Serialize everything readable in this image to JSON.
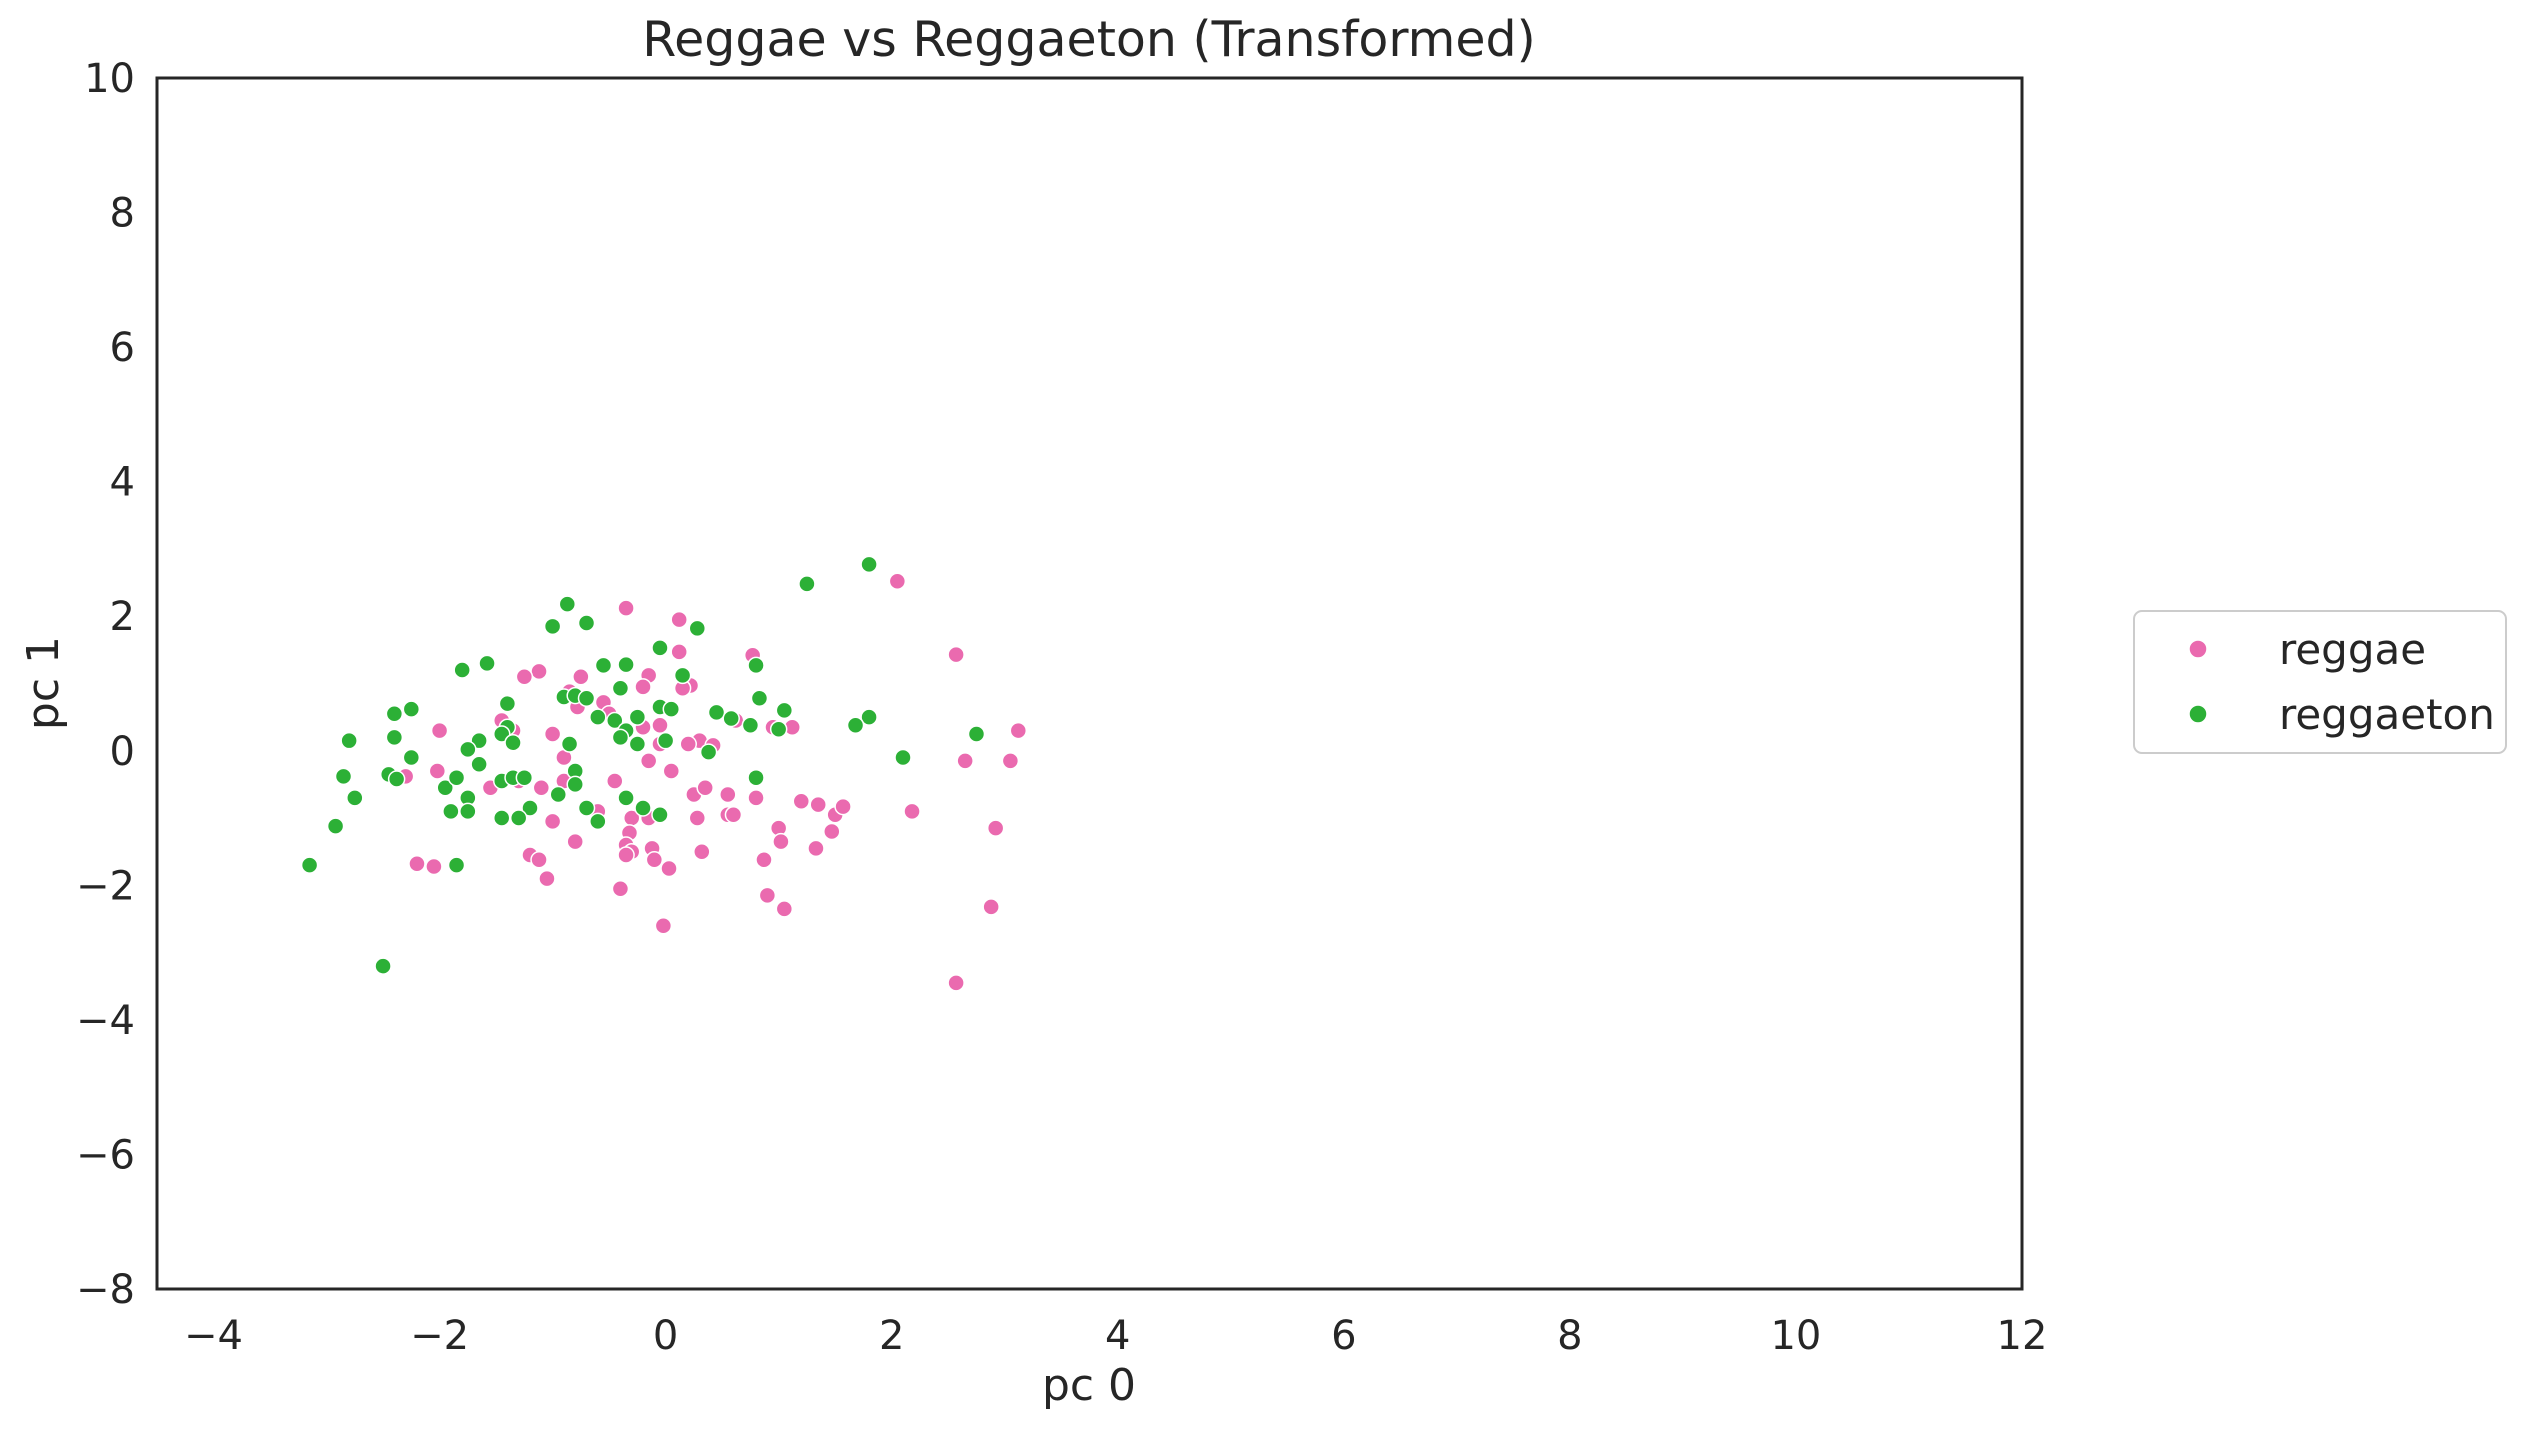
{
  "chart_data": {
    "type": "scatter",
    "title": "Reggae vs Reggaeton (Transformed)",
    "xlabel": "pc 0",
    "ylabel": "pc 1",
    "xlim": [
      -4.5,
      12
    ],
    "ylim": [
      -8,
      10
    ],
    "xticks": [
      "−4",
      "−2",
      "0",
      "2",
      "4",
      "6",
      "8",
      "10",
      "12"
    ],
    "xtick_values": [
      -4,
      -2,
      0,
      2,
      4,
      6,
      8,
      10,
      12
    ],
    "yticks": [
      "−8",
      "−6",
      "−4",
      "−2",
      "0",
      "2",
      "4",
      "6",
      "8",
      "10"
    ],
    "ytick_values": [
      -8,
      -6,
      -4,
      -2,
      0,
      2,
      4,
      6,
      8,
      10
    ],
    "grid": false,
    "legend_position": "outside-right",
    "series": [
      {
        "name": "reggae",
        "color": "#ea6aaf",
        "points": [
          [
            -0.35,
            2.12
          ],
          [
            0.12,
            1.95
          ],
          [
            2.05,
            2.52
          ],
          [
            2.57,
            1.43
          ],
          [
            0.77,
            1.42
          ],
          [
            0.12,
            1.47
          ],
          [
            -1.12,
            1.18
          ],
          [
            -0.75,
            1.1
          ],
          [
            -0.15,
            1.12
          ],
          [
            -1.25,
            1.1
          ],
          [
            -0.2,
            0.95
          ],
          [
            0.22,
            0.97
          ],
          [
            0.15,
            0.93
          ],
          [
            -0.85,
            0.88
          ],
          [
            -0.55,
            0.72
          ],
          [
            -0.78,
            0.65
          ],
          [
            -0.5,
            0.55
          ],
          [
            -0.2,
            0.35
          ],
          [
            -0.05,
            0.38
          ],
          [
            0.3,
            0.15
          ],
          [
            0.42,
            0.08
          ],
          [
            -1.45,
            0.45
          ],
          [
            -1.35,
            0.3
          ],
          [
            -1.0,
            0.25
          ],
          [
            -0.9,
            -0.1
          ],
          [
            -0.15,
            -0.15
          ],
          [
            0.05,
            -0.3
          ],
          [
            -0.45,
            -0.45
          ],
          [
            -2.0,
            0.3
          ],
          [
            -2.3,
            -0.38
          ],
          [
            -2.02,
            -0.3
          ],
          [
            -1.55,
            -0.55
          ],
          [
            -1.3,
            -0.45
          ],
          [
            -1.1,
            -0.55
          ],
          [
            -0.9,
            -0.45
          ],
          [
            -0.6,
            -0.9
          ],
          [
            -0.3,
            -1.0
          ],
          [
            -0.15,
            -1.0
          ],
          [
            0.25,
            -0.65
          ],
          [
            0.35,
            -0.55
          ],
          [
            0.55,
            -0.65
          ],
          [
            0.8,
            -0.7
          ],
          [
            0.55,
            -0.95
          ],
          [
            0.6,
            -0.95
          ],
          [
            0.28,
            -1.0
          ],
          [
            1.2,
            -0.75
          ],
          [
            1.35,
            -0.8
          ],
          [
            1.5,
            -0.95
          ],
          [
            1.57,
            -0.83
          ],
          [
            1.47,
            -1.2
          ],
          [
            1.0,
            -1.15
          ],
          [
            1.02,
            -1.35
          ],
          [
            1.33,
            -1.45
          ],
          [
            0.87,
            -1.62
          ],
          [
            -1.0,
            -1.05
          ],
          [
            -0.8,
            -1.35
          ],
          [
            -0.32,
            -1.22
          ],
          [
            -0.35,
            -1.4
          ],
          [
            -0.3,
            -1.5
          ],
          [
            -0.35,
            -1.55
          ],
          [
            -0.12,
            -1.45
          ],
          [
            -0.1,
            -1.62
          ],
          [
            0.03,
            -1.75
          ],
          [
            0.32,
            -1.5
          ],
          [
            -1.2,
            -1.55
          ],
          [
            -1.12,
            -1.62
          ],
          [
            -1.05,
            -1.9
          ],
          [
            -2.2,
            -1.68
          ],
          [
            -2.05,
            -1.72
          ],
          [
            -0.4,
            -2.05
          ],
          [
            0.9,
            -2.15
          ],
          [
            1.05,
            -2.35
          ],
          [
            -0.02,
            -2.6
          ],
          [
            2.65,
            -0.15
          ],
          [
            3.05,
            -0.15
          ],
          [
            3.12,
            0.3
          ],
          [
            2.18,
            -0.9
          ],
          [
            2.92,
            -1.15
          ],
          [
            2.88,
            -2.32
          ],
          [
            2.57,
            -3.45
          ],
          [
            0.95,
            0.35
          ],
          [
            1.12,
            0.35
          ],
          [
            0.62,
            0.45
          ],
          [
            0.2,
            0.1
          ],
          [
            -0.05,
            0.1
          ]
        ]
      },
      {
        "name": "reggaeton",
        "color": "#2cb036",
        "points": [
          [
            1.8,
            2.77
          ],
          [
            1.25,
            2.48
          ],
          [
            -0.87,
            2.18
          ],
          [
            -1.0,
            1.85
          ],
          [
            -0.7,
            1.9
          ],
          [
            0.28,
            1.82
          ],
          [
            -0.05,
            1.53
          ],
          [
            0.8,
            1.27
          ],
          [
            -1.58,
            1.3
          ],
          [
            -1.8,
            1.2
          ],
          [
            -0.55,
            1.27
          ],
          [
            -0.35,
            1.28
          ],
          [
            0.15,
            1.12
          ],
          [
            -0.9,
            0.8
          ],
          [
            -0.8,
            0.82
          ],
          [
            -0.7,
            0.78
          ],
          [
            -0.4,
            0.93
          ],
          [
            -1.4,
            0.7
          ],
          [
            -0.05,
            0.65
          ],
          [
            0.05,
            0.62
          ],
          [
            0.45,
            0.57
          ],
          [
            0.58,
            0.48
          ],
          [
            0.83,
            0.78
          ],
          [
            1.05,
            0.6
          ],
          [
            1.8,
            0.5
          ],
          [
            1.68,
            0.38
          ],
          [
            0.75,
            0.38
          ],
          [
            1.0,
            0.32
          ],
          [
            -0.25,
            0.5
          ],
          [
            -0.45,
            0.45
          ],
          [
            -0.6,
            0.5
          ],
          [
            -1.4,
            0.35
          ],
          [
            -1.45,
            0.25
          ],
          [
            -1.65,
            0.15
          ],
          [
            -1.35,
            0.12
          ],
          [
            -1.75,
            0.02
          ],
          [
            -2.25,
            0.62
          ],
          [
            -2.4,
            0.55
          ],
          [
            -2.8,
            0.15
          ],
          [
            -2.4,
            0.2
          ],
          [
            -0.35,
            0.3
          ],
          [
            -0.4,
            0.2
          ],
          [
            -0.25,
            0.1
          ],
          [
            0.0,
            0.15
          ],
          [
            -0.85,
            0.1
          ],
          [
            -1.65,
            -0.2
          ],
          [
            -2.25,
            -0.1
          ],
          [
            -2.85,
            -0.38
          ],
          [
            -2.45,
            -0.35
          ],
          [
            -2.38,
            -0.42
          ],
          [
            -2.75,
            -0.7
          ],
          [
            -1.95,
            -0.55
          ],
          [
            -1.85,
            -0.4
          ],
          [
            -1.75,
            -0.7
          ],
          [
            -1.9,
            -0.9
          ],
          [
            -1.75,
            -0.9
          ],
          [
            -1.45,
            -0.45
          ],
          [
            -1.35,
            -0.4
          ],
          [
            -1.25,
            -0.4
          ],
          [
            -0.8,
            -0.3
          ],
          [
            -0.8,
            -0.5
          ],
          [
            -0.95,
            -0.65
          ],
          [
            -1.2,
            -0.85
          ],
          [
            -1.3,
            -1.0
          ],
          [
            -1.45,
            -1.0
          ],
          [
            -0.7,
            -0.85
          ],
          [
            -0.6,
            -1.05
          ],
          [
            -0.35,
            -0.7
          ],
          [
            -0.2,
            -0.85
          ],
          [
            -0.05,
            -0.95
          ],
          [
            0.8,
            -0.4
          ],
          [
            2.1,
            -0.1
          ],
          [
            2.75,
            0.25
          ],
          [
            0.38,
            -0.02
          ],
          [
            -2.92,
            -1.12
          ],
          [
            -3.15,
            -1.7
          ],
          [
            -1.85,
            -1.7
          ],
          [
            -2.5,
            -3.2
          ]
        ]
      }
    ]
  }
}
